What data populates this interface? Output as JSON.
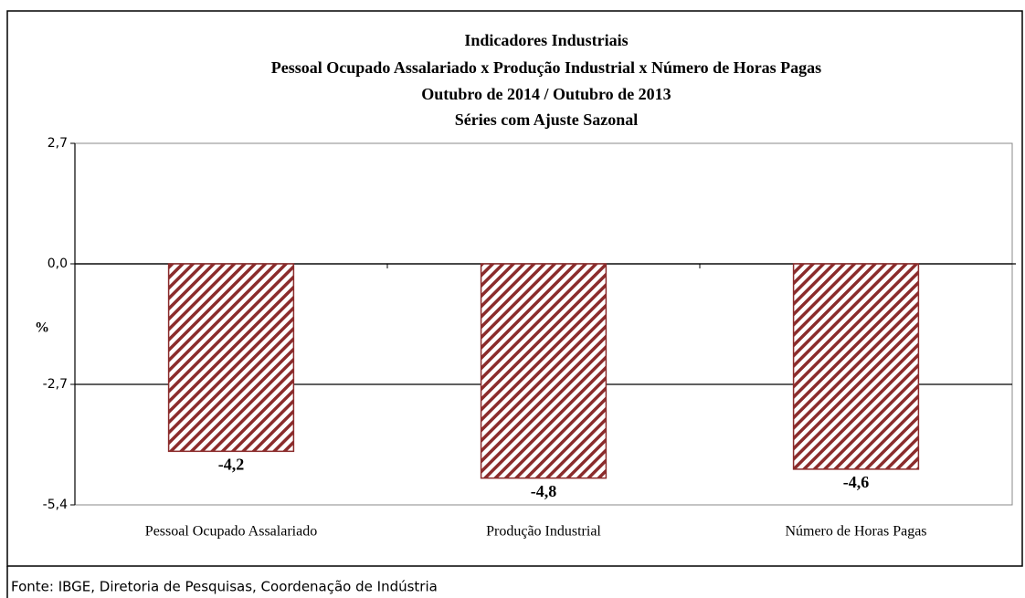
{
  "chart_data": {
    "type": "bar",
    "title": [
      "Indicadores Industriais",
      "Pessoal Ocupado  Assalariado x Produção Industrial x Número de Horas Pagas",
      "Outubro de 2014 / Outubro de 2013",
      "Séries com Ajuste Sazonal"
    ],
    "y_label": "%",
    "categories": [
      "Pessoal Ocupado Assalariado",
      "Produção Industrial",
      "Número de Horas Pagas"
    ],
    "values": [
      -4.2,
      -4.8,
      -4.6
    ],
    "value_labels": [
      "-4,2",
      "-4,8",
      "-4,6"
    ],
    "color": "#8b2c2c",
    "ylim": [
      -5.4,
      2.7
    ],
    "yticks": [
      {
        "value": 2.7,
        "label": "2,7"
      },
      {
        "value": 0,
        "label": "0,0"
      },
      {
        "value": -2.7,
        "label": "-2,7"
      },
      {
        "value": -5.4,
        "label": "-5,4"
      }
    ],
    "grid": true,
    "source": "Fonte: IBGE, Diretoria de Pesquisas, Coordenação de Indústria"
  }
}
